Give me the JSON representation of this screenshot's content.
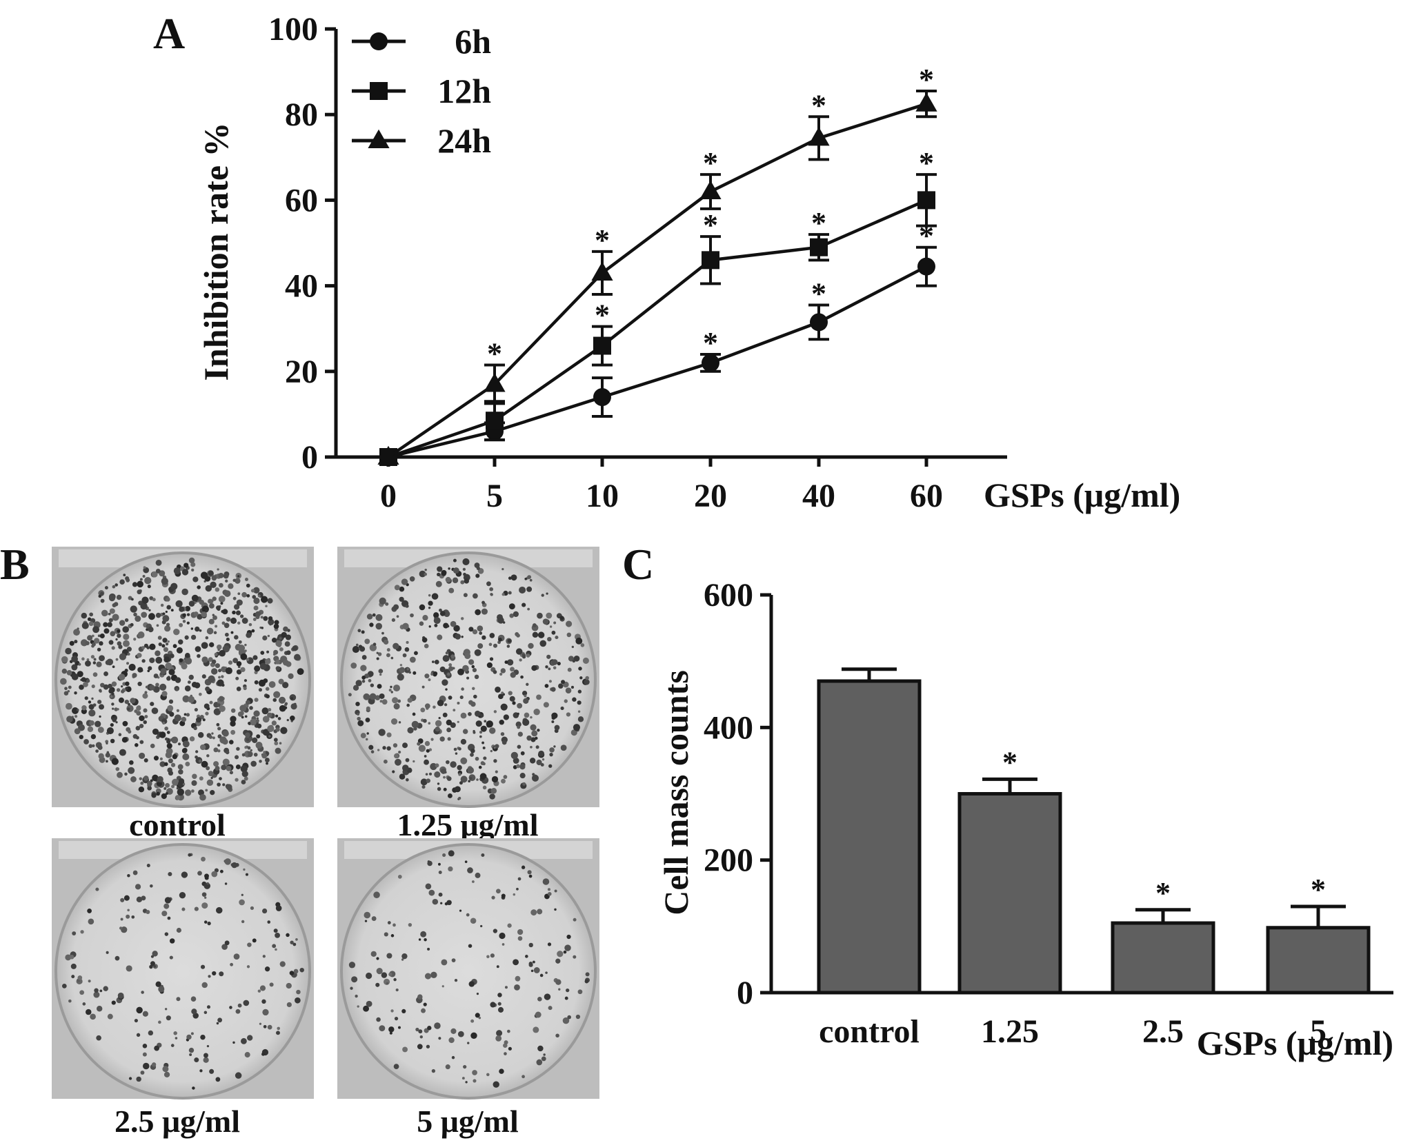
{
  "panels": {
    "a": "A",
    "b": "B",
    "c": "C"
  },
  "chart_data": [
    {
      "type": "line",
      "panel": "A",
      "x": [
        "0",
        "5",
        "10",
        "20",
        "40",
        "60"
      ],
      "xlabel": "GSPs (μg/ml)",
      "ylabel": "Inhibition rate %",
      "ylim": [
        0,
        100
      ],
      "yticks": [
        "0",
        "20",
        "40",
        "60",
        "80",
        "100"
      ],
      "grid": false,
      "legend_position": "top-left",
      "series": [
        {
          "name": "6h",
          "marker": "circle",
          "values": [
            0,
            6,
            14,
            22,
            31.5,
            44.5
          ],
          "errors": [
            0,
            2,
            4.5,
            2,
            4,
            4.5
          ],
          "significance": [
            "",
            "",
            "",
            "*",
            "*",
            "*"
          ]
        },
        {
          "name": "12h",
          "marker": "square",
          "values": [
            0,
            8.5,
            26,
            46,
            49,
            60
          ],
          "errors": [
            0,
            4.5,
            4.5,
            5.5,
            3,
            6
          ],
          "significance": [
            "",
            "",
            "*",
            "*",
            "*",
            "*"
          ]
        },
        {
          "name": "24h",
          "marker": "triangle",
          "values": [
            0,
            17,
            43,
            62,
            74.5,
            82.5
          ],
          "errors": [
            0,
            4.5,
            5,
            4,
            5,
            3
          ],
          "significance": [
            "",
            "*",
            "*",
            "*",
            "*",
            "*"
          ]
        }
      ]
    },
    {
      "type": "bar",
      "panel": "C",
      "categories": [
        "control",
        "1.25",
        "2.5",
        "5"
      ],
      "values": [
        470,
        300,
        105,
        98
      ],
      "errors": [
        18,
        22,
        20,
        32
      ],
      "significance": [
        "",
        "*",
        "*",
        "*"
      ],
      "xlabel": "GSPs (μg/ml)",
      "ylabel": "Cell mass counts",
      "ylim": [
        0,
        600
      ],
      "yticks": [
        "0",
        "200",
        "400",
        "600"
      ],
      "bar_color": "#5f5f5f",
      "grid": false
    }
  ],
  "plates": [
    {
      "caption": "control",
      "density": "high"
    },
    {
      "caption": "1.25 μg/ml",
      "density": "medium"
    },
    {
      "caption": "2.5 μg/ml",
      "density": "low"
    },
    {
      "caption": "5 μg/ml",
      "density": "low"
    }
  ]
}
